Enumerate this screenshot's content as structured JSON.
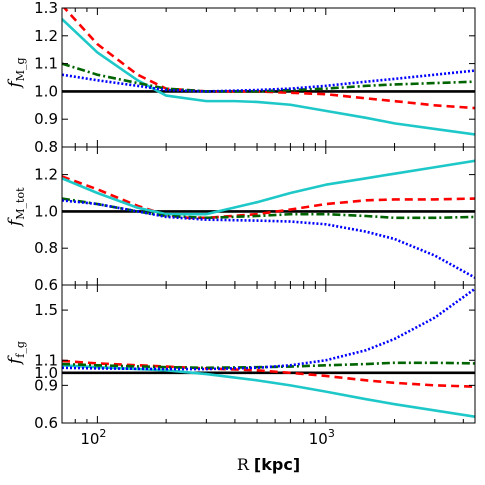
{
  "chart_data": [
    {
      "type": "line",
      "xlabel": "R [kpc]",
      "ylabel": "f_{M_g}",
      "ylabel_main": "f",
      "ylabel_sub": "M_g",
      "xscale": "log",
      "xlim": [
        70,
        4500
      ],
      "ylim": [
        0.8,
        1.3
      ],
      "yticks": [
        0.8,
        0.9,
        1.0,
        1.1,
        1.2,
        1.3
      ],
      "ytick_labels": [
        "0.8",
        "0.9",
        "1.0",
        "1.1",
        "1.2",
        "1.3"
      ],
      "series": [
        {
          "color": "#000000",
          "style": "solid",
          "x": [
            70,
            4500
          ],
          "values": [
            1.0,
            1.0
          ]
        },
        {
          "color": "#ff0000",
          "style": "dashed",
          "x": [
            70,
            100,
            150,
            200,
            300,
            500,
            700,
            1000,
            1500,
            2000,
            3000,
            4500
          ],
          "values": [
            1.31,
            1.17,
            1.06,
            1.01,
            1.0,
            1.0,
            0.995,
            0.99,
            0.975,
            0.965,
            0.95,
            0.94
          ]
        },
        {
          "color": "#1fc8c8",
          "style": "solid",
          "x": [
            70,
            100,
            150,
            200,
            300,
            400,
            500,
            700,
            1000,
            1500,
            2000,
            3000,
            4500
          ],
          "values": [
            1.26,
            1.14,
            1.04,
            0.985,
            0.965,
            0.965,
            0.962,
            0.952,
            0.93,
            0.905,
            0.885,
            0.865,
            0.845
          ]
        },
        {
          "color": "#006400",
          "style": "dashdot",
          "x": [
            70,
            100,
            150,
            200,
            300,
            500,
            700,
            1000,
            1500,
            2000,
            3000,
            4500
          ],
          "values": [
            1.1,
            1.06,
            1.03,
            1.01,
            1.0,
            1.0,
            1.005,
            1.01,
            1.02,
            1.025,
            1.03,
            1.035
          ]
        },
        {
          "color": "#0000ff",
          "style": "dotted",
          "x": [
            70,
            100,
            150,
            200,
            300,
            500,
            700,
            1000,
            1500,
            2000,
            3000,
            4500
          ],
          "values": [
            1.06,
            1.04,
            1.02,
            1.005,
            1.0,
            1.005,
            1.01,
            1.02,
            1.035,
            1.045,
            1.06,
            1.075
          ]
        }
      ]
    },
    {
      "type": "line",
      "xlabel": "R [kpc]",
      "ylabel": "f_{M_tot}",
      "ylabel_main": "f",
      "ylabel_sub": "M_tot",
      "xscale": "log",
      "xlim": [
        70,
        4500
      ],
      "ylim": [
        0.6,
        1.35
      ],
      "yticks": [
        0.6,
        0.8,
        1.0,
        1.2
      ],
      "ytick_labels": [
        "0.6",
        "0.8",
        "1.0",
        "1.2"
      ],
      "series": [
        {
          "color": "#000000",
          "style": "solid",
          "x": [
            70,
            4500
          ],
          "values": [
            1.0,
            1.0
          ]
        },
        {
          "color": "#ff0000",
          "style": "dashed",
          "x": [
            70,
            100,
            150,
            200,
            250,
            300,
            500,
            700,
            1000,
            1500,
            2000,
            3000,
            4500
          ],
          "values": [
            1.19,
            1.12,
            1.03,
            0.98,
            0.965,
            0.965,
            0.985,
            1.01,
            1.04,
            1.06,
            1.065,
            1.065,
            1.07
          ]
        },
        {
          "color": "#1fc8c8",
          "style": "solid",
          "x": [
            70,
            100,
            150,
            200,
            300,
            500,
            700,
            1000,
            1500,
            2000,
            3000,
            4500
          ],
          "values": [
            1.18,
            1.1,
            1.02,
            0.985,
            0.985,
            1.05,
            1.1,
            1.145,
            1.18,
            1.205,
            1.24,
            1.275
          ]
        },
        {
          "color": "#006400",
          "style": "dashdot",
          "x": [
            70,
            100,
            150,
            200,
            300,
            500,
            700,
            1000,
            1500,
            2000,
            3000,
            4500
          ],
          "values": [
            1.07,
            1.04,
            1.0,
            0.975,
            0.965,
            0.975,
            0.985,
            0.985,
            0.975,
            0.965,
            0.965,
            0.97
          ]
        },
        {
          "color": "#0000ff",
          "style": "dotted",
          "x": [
            70,
            100,
            150,
            200,
            300,
            500,
            700,
            1000,
            1500,
            2000,
            3000,
            4500
          ],
          "values": [
            1.06,
            1.04,
            1.0,
            0.97,
            0.955,
            0.95,
            0.945,
            0.93,
            0.89,
            0.85,
            0.76,
            0.64
          ]
        }
      ]
    },
    {
      "type": "line",
      "xlabel": "R [kpc]",
      "ylabel": "f_{f_g}",
      "ylabel_main": "f",
      "ylabel_sub": "f_g",
      "xscale": "log",
      "xlim": [
        70,
        4500
      ],
      "ylim": [
        0.6,
        1.7
      ],
      "ytick_positions": [
        0.6,
        0.9,
        1.0,
        1.1,
        1.5
      ],
      "ytick_labels": [
        "0.6",
        "0.9",
        "1.0",
        "1.1",
        "1.5"
      ],
      "series": [
        {
          "color": "#000000",
          "style": "solid",
          "x": [
            70,
            4500
          ],
          "values": [
            1.0,
            1.0
          ]
        },
        {
          "color": "#ff0000",
          "style": "dashed",
          "x": [
            70,
            100,
            200,
            300,
            500,
            700,
            1000,
            1500,
            2000,
            3000,
            4500
          ],
          "values": [
            1.095,
            1.075,
            1.05,
            1.035,
            1.02,
            1.0,
            0.975,
            0.94,
            0.92,
            0.9,
            0.89
          ]
        },
        {
          "color": "#1fc8c8",
          "style": "solid",
          "x": [
            70,
            100,
            200,
            300,
            500,
            700,
            1000,
            1500,
            2000,
            3000,
            4500
          ],
          "values": [
            1.06,
            1.045,
            1.02,
            0.99,
            0.94,
            0.9,
            0.85,
            0.79,
            0.75,
            0.7,
            0.65
          ]
        },
        {
          "color": "#006400",
          "style": "dashdot",
          "x": [
            70,
            100,
            200,
            300,
            500,
            700,
            1000,
            1500,
            2000,
            3000,
            4500
          ],
          "values": [
            1.07,
            1.06,
            1.045,
            1.04,
            1.045,
            1.05,
            1.06,
            1.07,
            1.08,
            1.08,
            1.075
          ]
        },
        {
          "color": "#0000ff",
          "style": "dotted",
          "x": [
            70,
            100,
            200,
            300,
            500,
            700,
            1000,
            1500,
            2000,
            3000,
            4500
          ],
          "values": [
            1.04,
            1.035,
            1.03,
            1.03,
            1.04,
            1.06,
            1.1,
            1.18,
            1.27,
            1.44,
            1.67
          ]
        }
      ]
    }
  ],
  "x_axis": {
    "label_main": "R",
    "label_unit": "[kpc]",
    "ticks": [
      {
        "value": 100,
        "base": "10",
        "exp": "2"
      },
      {
        "value": 1000,
        "base": "10",
        "exp": "3"
      }
    ]
  }
}
